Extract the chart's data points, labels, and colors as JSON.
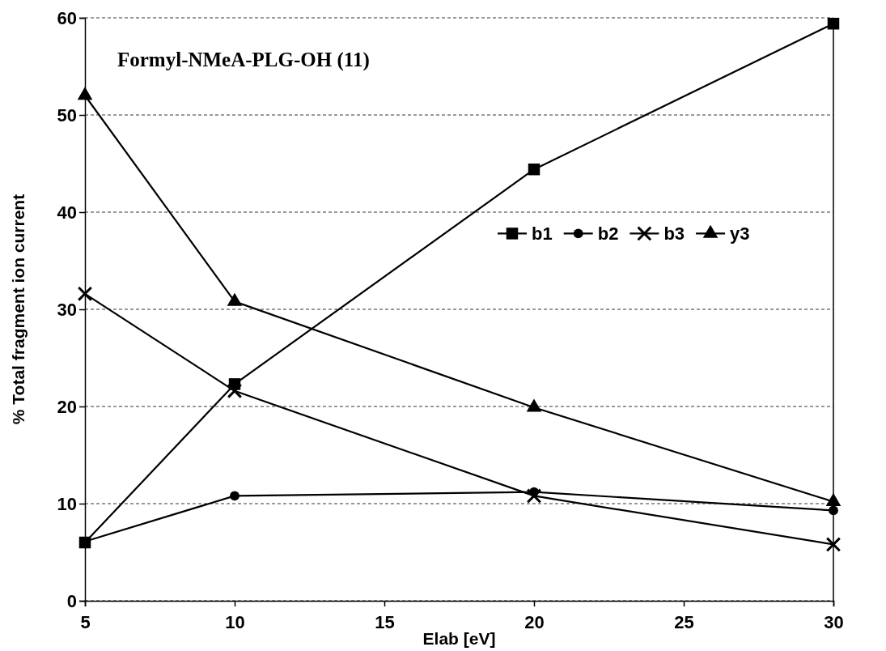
{
  "chart_data": {
    "type": "line",
    "title": "Formyl-NMeA-PLG-OH (11)",
    "xlabel": "Elab [eV]",
    "ylabel": "% Total fragment ion current",
    "x": [
      5,
      10,
      20,
      30
    ],
    "xlim": [
      5,
      30
    ],
    "xticks": [
      5,
      10,
      15,
      20,
      25,
      30
    ],
    "ylim": [
      0,
      60
    ],
    "yticks": [
      0,
      10,
      20,
      30,
      40,
      50,
      60
    ],
    "grid": "y",
    "legend": "right",
    "line_style": "solid",
    "series": [
      {
        "name": "b1",
        "color": "#000000",
        "marker": "square",
        "values": [
          6.0,
          22.3,
          44.4,
          59.4
        ]
      },
      {
        "name": "b2",
        "color": "#000000",
        "marker": "circle",
        "values": [
          6.1,
          10.8,
          11.2,
          9.3
        ]
      },
      {
        "name": "b3",
        "color": "#000000",
        "marker": "cross",
        "values": [
          31.6,
          21.6,
          10.8,
          5.8
        ]
      },
      {
        "name": "y3",
        "color": "#000000",
        "marker": "triangle",
        "values": [
          52.0,
          30.8,
          19.9,
          10.2
        ]
      }
    ]
  }
}
